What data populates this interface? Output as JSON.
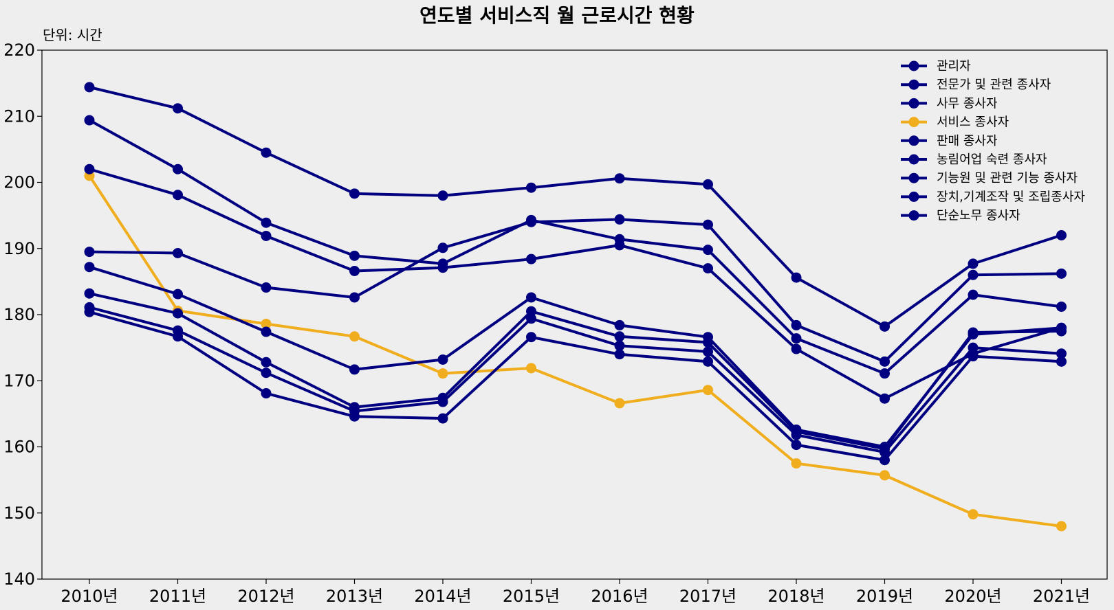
{
  "chart_data": {
    "type": "line",
    "title": "연도별 서비스직 월 근로시간 현황",
    "unit_label": "단위: 시간",
    "x": [
      "2010년",
      "2011년",
      "2012년",
      "2013년",
      "2014년",
      "2015년",
      "2016년",
      "2017년",
      "2018년",
      "2019년",
      "2020년",
      "2021년"
    ],
    "ylim": [
      140,
      220
    ],
    "yticks": [
      140,
      150,
      160,
      170,
      180,
      190,
      200,
      210,
      220
    ],
    "grid": false,
    "legend_position": "top-right",
    "colors": {
      "default": "#000080",
      "highlight": "#f0ae1e"
    },
    "series": [
      {
        "name": "관리자",
        "color": "#000080",
        "values": [
          214.4,
          211.2,
          204.5,
          198.3,
          198.0,
          199.2,
          200.6,
          199.7,
          185.6,
          178.2,
          187.7,
          192.0
        ]
      },
      {
        "name": "전문가 및 관련 종사자",
        "color": "#000080",
        "values": [
          189.5,
          189.3,
          184.1,
          182.6,
          190.1,
          194.0,
          194.4,
          193.6,
          178.4,
          172.9,
          186.0,
          186.2
        ]
      },
      {
        "name": "사무 종사자",
        "color": "#000080",
        "values": [
          202.0,
          198.1,
          191.9,
          186.6,
          187.1,
          188.4,
          190.5,
          187.0,
          174.8,
          167.3,
          174.1,
          178.0
        ]
      },
      {
        "name": "서비스 종사자",
        "color": "#f0ae1e",
        "values": [
          201.0,
          180.6,
          178.6,
          176.7,
          171.1,
          171.9,
          166.6,
          168.6,
          157.5,
          155.7,
          149.8,
          148.0
        ]
      },
      {
        "name": "판매 종사자",
        "color": "#000080",
        "values": [
          209.4,
          202.0,
          193.9,
          188.9,
          187.7,
          194.3,
          191.4,
          189.8,
          176.4,
          171.1,
          183.0,
          181.2
        ]
      },
      {
        "name": "농림어업 숙련 종사자",
        "color": "#000080",
        "values": [
          187.2,
          183.1,
          177.4,
          171.7,
          173.2,
          182.6,
          178.4,
          176.6,
          162.6,
          160.0,
          177.0,
          178.0
        ]
      },
      {
        "name": "기능원 및 관련 기능 종사자",
        "color": "#000080",
        "values": [
          183.2,
          180.2,
          172.8,
          166.0,
          167.4,
          180.5,
          176.7,
          175.8,
          162.3,
          159.7,
          177.3,
          177.5
        ]
      },
      {
        "name": "장치,기계조작 및 조립종사자",
        "color": "#000080",
        "values": [
          181.1,
          177.6,
          171.2,
          165.4,
          166.8,
          179.4,
          175.3,
          174.4,
          161.8,
          159.2,
          175.0,
          174.1
        ]
      },
      {
        "name": "단순노무 종사자",
        "color": "#000080",
        "values": [
          180.4,
          176.7,
          168.1,
          164.6,
          164.3,
          176.6,
          174.0,
          172.9,
          160.3,
          158.0,
          173.7,
          172.9
        ]
      }
    ]
  }
}
